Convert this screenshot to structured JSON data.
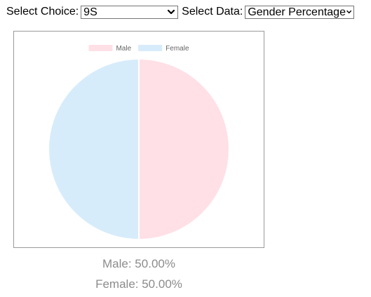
{
  "controls": {
    "choice_label": "Select Choice:",
    "choice_value": "9S",
    "data_label": "Select Data:",
    "data_value": "Gender Percentage",
    "chevron_icon": "chevron-down-icon"
  },
  "chart_data": {
    "type": "pie",
    "categories": [
      "Male",
      "Female"
    ],
    "values": [
      50.0,
      50.0
    ],
    "colors": [
      "#ffe0e6",
      "#d7ecfb"
    ],
    "legend": "top"
  },
  "summary": {
    "male": "Male: 50.00%",
    "female": "Female: 50.00%"
  }
}
